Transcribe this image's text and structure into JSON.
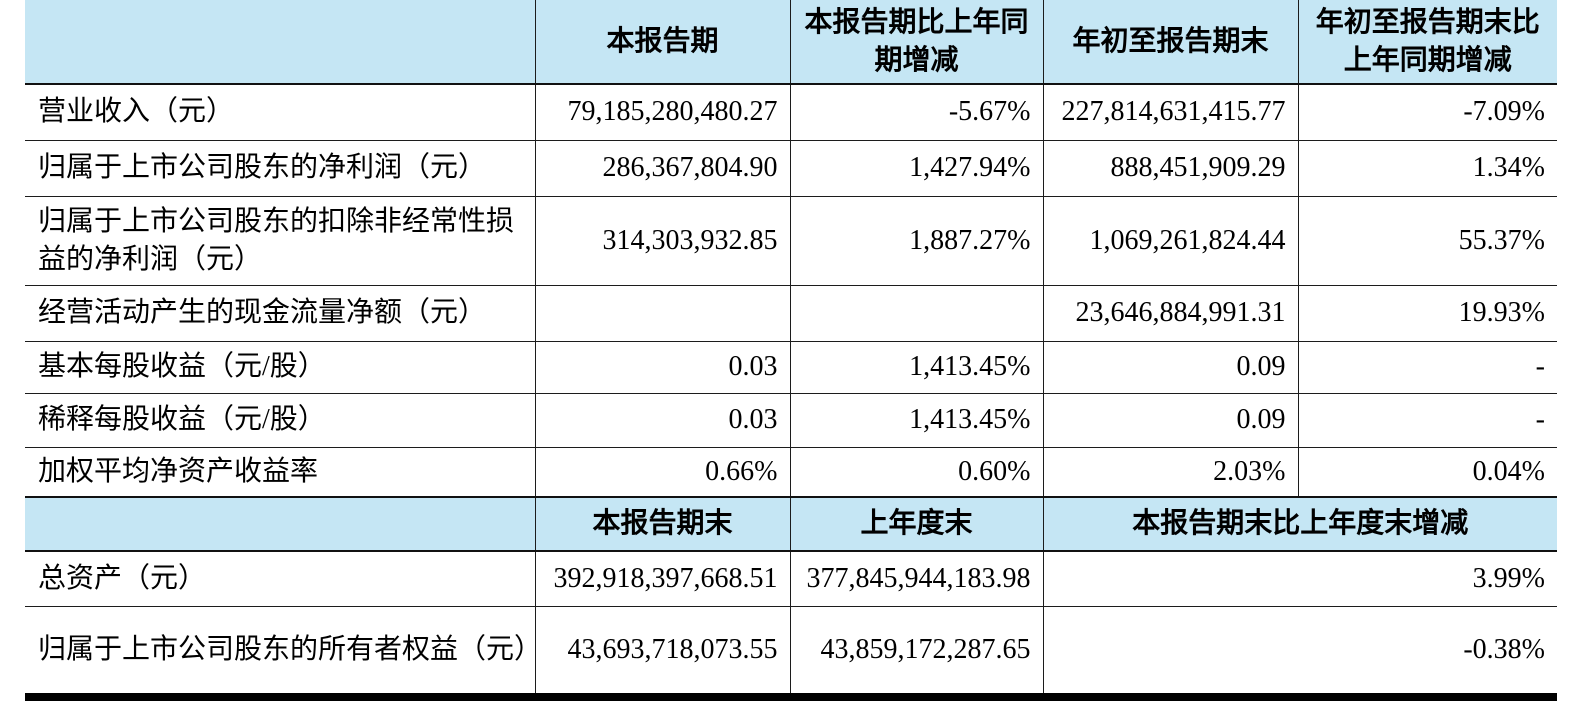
{
  "colors": {
    "header_background": "#c5e6f4",
    "border": "#1c1c1c",
    "text": "#000000"
  },
  "table": {
    "section1": {
      "headers": {
        "col1": "",
        "col2": "本报告期",
        "col3": "本报告期比上年同期增减",
        "col4": "年初至报告期末",
        "col5": "年初至报告期末比上年同期增减"
      },
      "rows": [
        {
          "label": "营业收入（元）",
          "values": [
            "79,185,280,480.27",
            "-5.67%",
            "227,814,631,415.77",
            "-7.09%"
          ]
        },
        {
          "label": "归属于上市公司股东的净利润（元）",
          "values": [
            "286,367,804.90",
            "1,427.94%",
            "888,451,909.29",
            "1.34%"
          ]
        },
        {
          "label": "归属于上市公司股东的扣除非经常性损益的净利润（元）",
          "values": [
            "314,303,932.85",
            "1,887.27%",
            "1,069,261,824.44",
            "55.37%"
          ]
        },
        {
          "label": "经营活动产生的现金流量净额（元）",
          "values": [
            "",
            "",
            "23,646,884,991.31",
            "19.93%"
          ]
        },
        {
          "label": "基本每股收益（元/股）",
          "values": [
            "0.03",
            "1,413.45%",
            "0.09",
            "-"
          ]
        },
        {
          "label": "稀释每股收益（元/股）",
          "values": [
            "0.03",
            "1,413.45%",
            "0.09",
            "-"
          ]
        },
        {
          "label": "加权平均净资产收益率",
          "values": [
            "0.66%",
            "0.60%",
            "2.03%",
            "0.04%"
          ]
        }
      ]
    },
    "section2": {
      "headers": {
        "col1": "",
        "col2": "本报告期末",
        "col3": "上年度末",
        "col45": "本报告期末比上年度末增减"
      },
      "rows": [
        {
          "label": "总资产（元）",
          "values": [
            "392,918,397,668.51",
            "377,845,944,183.98",
            "3.99%"
          ]
        },
        {
          "label": "归属于上市公司股东的所有者权益（元）",
          "values": [
            "43,693,718,073.55",
            "43,859,172,287.65",
            "-0.38%"
          ]
        }
      ]
    }
  }
}
